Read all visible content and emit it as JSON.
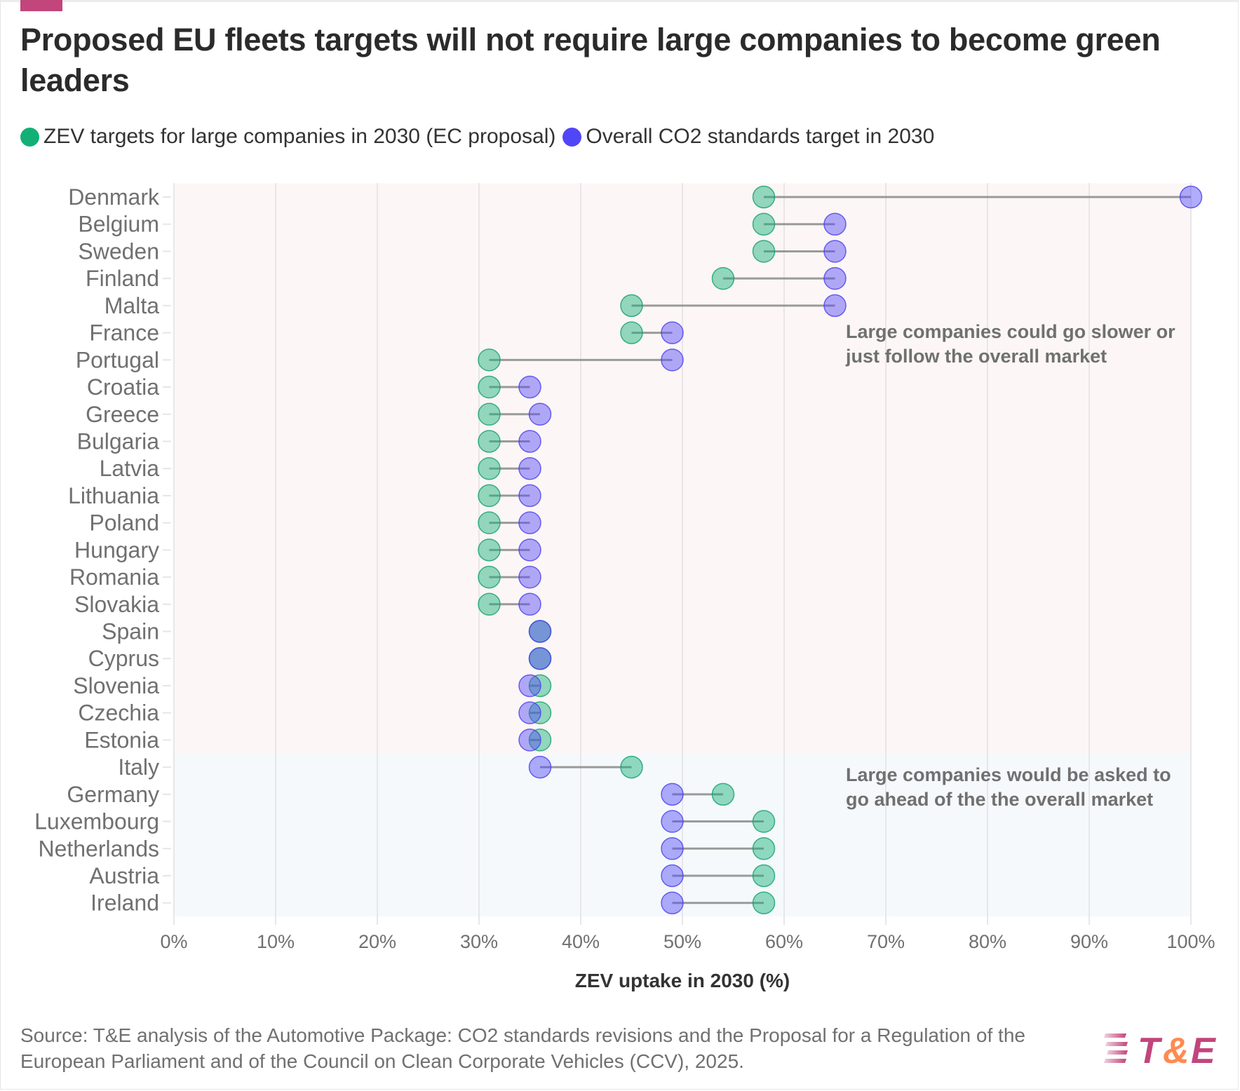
{
  "header": {
    "title": "Proposed EU fleets targets will not require large companies to become green leaders"
  },
  "legend": [
    {
      "label": "ZEV targets for large companies in 2030 (EC proposal)",
      "color": "#12b076"
    },
    {
      "label": "Overall CO2 standards target in 2030",
      "color": "#5146f7"
    }
  ],
  "footer": {
    "source": "Source: T&E analysis of the Automotive Package: CO2 standards revisions and the Proposal for a Regulation of the European Parliament and of the Council on Clean Corporate Vehicles (CCV), 2025.",
    "logo": {
      "text_t": "T",
      "text_amp": "&",
      "text_e": "E",
      "color_primary": "#c2457c",
      "color_amp": "#ff8a50"
    }
  },
  "chart_data": {
    "type": "dumbbell",
    "title": "Proposed EU fleets targets will not require large companies to become green leaders",
    "xlabel": "ZEV uptake in 2030 (%)",
    "ylabel": "",
    "xlim": [
      0,
      100
    ],
    "xticks": [
      "0%",
      "10%",
      "20%",
      "30%",
      "40%",
      "50%",
      "60%",
      "70%",
      "80%",
      "90%",
      "100%"
    ],
    "grid": true,
    "legend_position": "top-left",
    "categories": [
      "Denmark",
      "Belgium",
      "Sweden",
      "Finland",
      "Malta",
      "France",
      "Portugal",
      "Croatia",
      "Greece",
      "Bulgaria",
      "Latvia",
      "Lithuania",
      "Poland",
      "Hungary",
      "Romania",
      "Slovakia",
      "Spain",
      "Cyprus",
      "Slovenia",
      "Czechia",
      "Estonia",
      "Italy",
      "Germany",
      "Luxembourg",
      "Netherlands",
      "Austria",
      "Ireland"
    ],
    "series": [
      {
        "name": "ZEV targets for large companies in 2030 (EC proposal)",
        "color": "#12b076",
        "values": [
          58,
          58,
          58,
          54,
          45,
          45,
          31,
          31,
          31,
          31,
          31,
          31,
          31,
          31,
          31,
          31,
          36,
          36,
          36,
          36,
          36,
          45,
          54,
          58,
          58,
          58,
          58
        ]
      },
      {
        "name": "Overall CO2 standards target in 2030",
        "color": "#5146f7",
        "values": [
          100,
          65,
          65,
          65,
          65,
          49,
          49,
          35,
          36,
          35,
          35,
          35,
          35,
          35,
          35,
          35,
          36,
          36,
          35,
          35,
          35,
          36,
          49,
          49,
          49,
          49,
          49
        ]
      }
    ],
    "regions": [
      {
        "from": "Denmark",
        "to": "Estonia",
        "color": "#fcf6f6",
        "annotation": "Large companies could go slower or just follow the overall market"
      },
      {
        "from": "Italy",
        "to": "Ireland",
        "color": "#f5f9fc",
        "annotation": "Large companies would be asked to go ahead of the the overall market"
      }
    ]
  }
}
